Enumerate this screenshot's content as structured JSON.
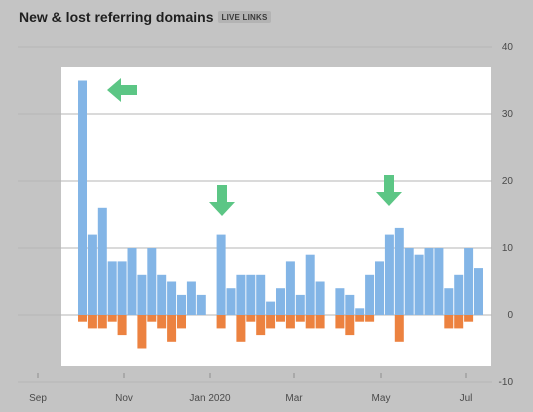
{
  "header": {
    "title": "New & lost referring domains",
    "badge": "LIVE LINKS"
  },
  "chart_data": {
    "type": "bar",
    "title": "New & lost referring domains",
    "ylim": [
      -10,
      40
    ],
    "yticks": [
      "40",
      "30",
      "20",
      "10",
      "0",
      "-10"
    ],
    "xtick_labels": [
      "Sep",
      "Nov",
      "Jan 2020",
      "Mar",
      "May",
      "Jul"
    ],
    "grid": true,
    "series": [
      {
        "name": "new",
        "color": "#83b5e6",
        "values": [
          35,
          12,
          16,
          8,
          8,
          10,
          6,
          10,
          6,
          5,
          3,
          5,
          3,
          null,
          12,
          4,
          6,
          6,
          6,
          2,
          4,
          8,
          3,
          9,
          5,
          null,
          4,
          3,
          1,
          6,
          8,
          12,
          13,
          10,
          9,
          10,
          10,
          4,
          6,
          10,
          7
        ]
      },
      {
        "name": "lost",
        "color": "#ec8240",
        "values": [
          -1,
          -2,
          -2,
          -1,
          -3,
          0,
          -5,
          -1,
          -2,
          -4,
          -2,
          0,
          0,
          null,
          -2,
          0,
          -4,
          -1,
          -3,
          -2,
          -1,
          -2,
          -1,
          -2,
          -2,
          null,
          -2,
          -3,
          -1,
          -1,
          0,
          0,
          -4,
          0,
          0,
          0,
          0,
          -2,
          -2,
          -1,
          0
        ]
      }
    ],
    "annotations": [
      {
        "type": "arrow",
        "direction": "left",
        "color": "#5cc685"
      },
      {
        "type": "arrow",
        "direction": "down",
        "color": "#5cc685"
      },
      {
        "type": "arrow",
        "direction": "down",
        "color": "#5cc685"
      }
    ]
  }
}
